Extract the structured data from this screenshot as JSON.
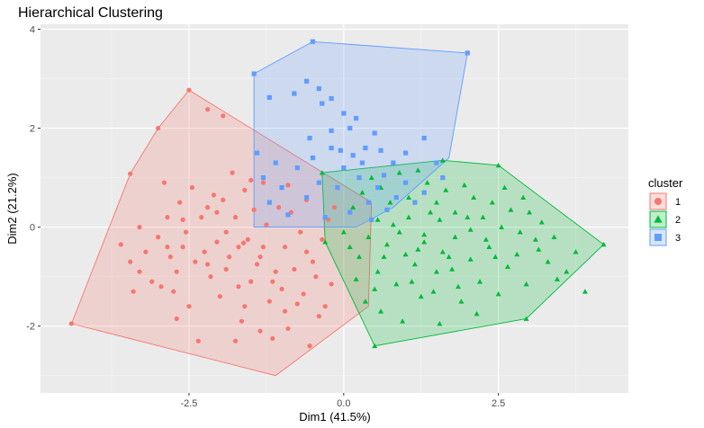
{
  "chart_data": {
    "type": "scatter",
    "title": "Hierarchical Clustering",
    "xlabel": "Dim1 (41.5%)",
    "ylabel": "Dim2 (21.2%)",
    "xlim": [
      -4.9,
      4.6
    ],
    "ylim": [
      -3.35,
      4.1
    ],
    "xticks": [
      -2.5,
      0.0,
      2.5
    ],
    "xtick_labels": [
      "-2.5",
      "0.0",
      "2.5"
    ],
    "yticks": [
      -2,
      0,
      2,
      4
    ],
    "ytick_labels": [
      "-2",
      "0",
      "2",
      "4"
    ],
    "grid": true,
    "legend": {
      "title": "cluster",
      "placement": "right"
    },
    "series": [
      {
        "name": "1",
        "marker": "circle",
        "color": "#F8766D",
        "hull": [
          [
            -4.4,
            -1.95
          ],
          [
            -3.45,
            1.08
          ],
          [
            -3.0,
            2.0
          ],
          [
            -2.5,
            2.77
          ],
          [
            -0.4,
            1.15
          ],
          [
            0.45,
            0.5
          ],
          [
            0.4,
            -1.6
          ],
          [
            -1.1,
            -3.0
          ]
        ],
        "points": [
          [
            -4.4,
            -1.95
          ],
          [
            -3.45,
            1.08
          ],
          [
            -3.0,
            2.0
          ],
          [
            -2.5,
            2.77
          ],
          [
            -2.2,
            2.38
          ],
          [
            -1.95,
            2.25
          ],
          [
            -3.6,
            -0.35
          ],
          [
            -3.45,
            -0.7
          ],
          [
            -3.4,
            -1.3
          ],
          [
            -3.3,
            -0.9
          ],
          [
            -3.2,
            -0.5
          ],
          [
            -3.1,
            -1.1
          ],
          [
            -3.0,
            -0.2
          ],
          [
            -2.95,
            -1.2
          ],
          [
            -2.9,
            0.9
          ],
          [
            -2.85,
            0.2
          ],
          [
            -2.8,
            -0.6
          ],
          [
            -2.75,
            -1.3
          ],
          [
            -2.7,
            -0.9
          ],
          [
            -2.65,
            0.5
          ],
          [
            -2.6,
            -0.4
          ],
          [
            -2.55,
            -0.1
          ],
          [
            -2.5,
            -1.6
          ],
          [
            -2.45,
            0.8
          ],
          [
            -2.4,
            -0.7
          ],
          [
            -2.35,
            -2.3
          ],
          [
            -2.3,
            0.2
          ],
          [
            -2.25,
            -0.5
          ],
          [
            -2.2,
            0.4
          ],
          [
            -2.15,
            -1.0
          ],
          [
            -2.1,
            0.65
          ],
          [
            -2.05,
            -0.3
          ],
          [
            -2.0,
            -1.4
          ],
          [
            -1.95,
            0.55
          ],
          [
            -1.9,
            -0.1
          ],
          [
            -1.85,
            -0.6
          ],
          [
            -1.8,
            1.1
          ],
          [
            -1.75,
            0.2
          ],
          [
            -1.7,
            -0.4
          ],
          [
            -1.65,
            -1.9
          ],
          [
            -1.6,
            0.75
          ],
          [
            -1.55,
            -0.25
          ],
          [
            -1.5,
            -1.1
          ],
          [
            -1.45,
            0.35
          ],
          [
            -1.4,
            -0.75
          ],
          [
            -1.35,
            -2.1
          ],
          [
            -1.3,
            -0.4
          ],
          [
            -1.25,
            0.05
          ],
          [
            -1.2,
            -1.5
          ],
          [
            -1.15,
            -2.25
          ],
          [
            -1.1,
            -0.9
          ],
          [
            -1.05,
            0.4
          ],
          [
            -1.0,
            -1.25
          ],
          [
            -0.95,
            -0.4
          ],
          [
            -0.9,
            -2.05
          ],
          [
            -0.85,
            0.3
          ],
          [
            -0.8,
            -0.85
          ],
          [
            -0.75,
            -1.55
          ],
          [
            -0.7,
            -0.1
          ],
          [
            -0.65,
            -1.35
          ],
          [
            -0.6,
            0.55
          ],
          [
            -0.55,
            -2.4
          ],
          [
            -0.5,
            -0.7
          ],
          [
            -0.45,
            -1.0
          ],
          [
            -0.4,
            -1.8
          ],
          [
            -0.35,
            -0.25
          ],
          [
            -0.3,
            -1.6
          ],
          [
            -0.25,
            0.15
          ],
          [
            -0.2,
            -1.15
          ],
          [
            -0.15,
            0.4
          ],
          [
            -2.7,
            -1.85
          ],
          [
            -1.6,
            -1.6
          ],
          [
            -1.9,
            -0.85
          ],
          [
            -2.2,
            -0.75
          ],
          [
            -0.6,
            -0.5
          ],
          [
            -1.75,
            -2.3
          ],
          [
            -2.6,
            0.15
          ],
          [
            -1.3,
            0.9
          ],
          [
            -1.15,
            -1.1
          ],
          [
            -1.5,
            0.95
          ],
          [
            -0.9,
            0.85
          ],
          [
            -3.3,
            0.0
          ],
          [
            -2.05,
            0.3
          ],
          [
            -1.7,
            -1.2
          ],
          [
            -1.35,
            -0.6
          ],
          [
            -0.95,
            -1.7
          ],
          [
            -2.85,
            -0.4
          ],
          [
            -1.62,
            -0.32
          ]
        ]
      },
      {
        "name": "2",
        "marker": "triangle",
        "color": "#00BA38",
        "hull": [
          [
            -0.35,
            1.1
          ],
          [
            1.6,
            1.35
          ],
          [
            2.5,
            1.25
          ],
          [
            4.2,
            -0.35
          ],
          [
            2.95,
            -1.85
          ],
          [
            0.5,
            -2.4
          ],
          [
            -0.3,
            -0.3
          ]
        ],
        "points": [
          [
            -0.35,
            1.1
          ],
          [
            1.6,
            1.35
          ],
          [
            2.5,
            1.25
          ],
          [
            4.2,
            -0.35
          ],
          [
            2.95,
            -1.85
          ],
          [
            0.5,
            -2.4
          ],
          [
            -0.3,
            -0.3
          ],
          [
            0.3,
            0.7
          ],
          [
            0.45,
            1.0
          ],
          [
            0.6,
            0.8
          ],
          [
            0.75,
            0.5
          ],
          [
            0.9,
            1.1
          ],
          [
            1.05,
            0.6
          ],
          [
            1.2,
            1.15
          ],
          [
            1.35,
            0.9
          ],
          [
            1.5,
            0.5
          ],
          [
            1.65,
            0.75
          ],
          [
            1.8,
            0.3
          ],
          [
            1.95,
            0.85
          ],
          [
            2.1,
            0.6
          ],
          [
            2.25,
            0.2
          ],
          [
            2.4,
            0.5
          ],
          [
            2.55,
            0.0
          ],
          [
            2.7,
            0.35
          ],
          [
            2.85,
            -0.1
          ],
          [
            3.0,
            0.3
          ],
          [
            3.15,
            -0.45
          ],
          [
            3.3,
            -0.7
          ],
          [
            3.45,
            -1.05
          ],
          [
            3.6,
            -0.9
          ],
          [
            3.75,
            -0.5
          ],
          [
            3.9,
            -1.3
          ],
          [
            0.1,
            -0.4
          ],
          [
            0.25,
            -0.6
          ],
          [
            0.4,
            -0.2
          ],
          [
            0.55,
            -0.9
          ],
          [
            0.7,
            -0.35
          ],
          [
            0.85,
            -1.15
          ],
          [
            1.0,
            -0.55
          ],
          [
            1.15,
            -0.75
          ],
          [
            1.3,
            -0.15
          ],
          [
            1.45,
            -1.3
          ],
          [
            1.6,
            -0.5
          ],
          [
            1.75,
            -0.85
          ],
          [
            1.9,
            -1.5
          ],
          [
            2.05,
            -0.65
          ],
          [
            2.2,
            -1.1
          ],
          [
            2.35,
            -0.4
          ],
          [
            2.5,
            -1.35
          ],
          [
            2.65,
            -0.8
          ],
          [
            2.8,
            -0.55
          ],
          [
            2.95,
            -1.15
          ],
          [
            3.1,
            -0.25
          ],
          [
            0.2,
            -1.05
          ],
          [
            0.35,
            -1.5
          ],
          [
            0.6,
            -1.7
          ],
          [
            0.95,
            -1.9
          ],
          [
            1.25,
            -1.4
          ],
          [
            1.55,
            -1.95
          ],
          [
            1.85,
            -1.2
          ],
          [
            2.15,
            -1.75
          ],
          [
            0.55,
            0.15
          ],
          [
            0.8,
            0.05
          ],
          [
            1.05,
            0.2
          ],
          [
            1.3,
            -0.3
          ],
          [
            1.55,
            0.15
          ],
          [
            1.8,
            -0.2
          ],
          [
            2.05,
            -0.05
          ],
          [
            2.3,
            -0.25
          ],
          [
            2.6,
            0.8
          ],
          [
            2.9,
            0.6
          ],
          [
            3.2,
            0.1
          ],
          [
            3.4,
            -0.2
          ],
          [
            0.15,
            0.4
          ],
          [
            0.0,
            -0.1
          ],
          [
            0.65,
            -0.6
          ],
          [
            1.1,
            -1.1
          ],
          [
            1.4,
            0.3
          ],
          [
            1.7,
            -0.6
          ],
          [
            2.0,
            0.2
          ],
          [
            2.45,
            -0.6
          ],
          [
            0.5,
            -1.25
          ],
          [
            0.9,
            -0.1
          ],
          [
            1.2,
            -0.45
          ],
          [
            1.5,
            -0.9
          ]
        ]
      },
      {
        "name": "3",
        "marker": "square",
        "color": "#619CFF",
        "hull": [
          [
            -1.45,
            3.1
          ],
          [
            -0.5,
            3.75
          ],
          [
            2.0,
            3.52
          ],
          [
            1.7,
            1.4
          ],
          [
            0.8,
            0.4
          ],
          [
            0.2,
            0.0
          ],
          [
            -1.45,
            0.0
          ]
        ],
        "points": [
          [
            -1.45,
            3.1
          ],
          [
            -0.5,
            3.75
          ],
          [
            2.0,
            3.52
          ],
          [
            -1.2,
            2.62
          ],
          [
            -0.8,
            2.7
          ],
          [
            -0.6,
            2.95
          ],
          [
            -0.4,
            2.8
          ],
          [
            -0.35,
            2.5
          ],
          [
            -0.2,
            2.6
          ],
          [
            0.0,
            2.3
          ],
          [
            0.1,
            2.0
          ],
          [
            0.2,
            2.2
          ],
          [
            0.35,
            1.6
          ],
          [
            0.5,
            1.9
          ],
          [
            0.6,
            1.55
          ],
          [
            0.8,
            1.3
          ],
          [
            1.0,
            1.5
          ],
          [
            1.3,
            1.8
          ],
          [
            1.5,
            1.3
          ],
          [
            1.6,
            1.0
          ],
          [
            -1.4,
            1.5
          ],
          [
            -1.3,
            1.0
          ],
          [
            -1.2,
            0.5
          ],
          [
            -1.1,
            1.3
          ],
          [
            -1.0,
            0.8
          ],
          [
            -0.9,
            0.25
          ],
          [
            -0.75,
            1.2
          ],
          [
            -0.6,
            0.6
          ],
          [
            -0.5,
            1.4
          ],
          [
            -0.4,
            0.9
          ],
          [
            -0.3,
            0.2
          ],
          [
            -0.2,
            1.6
          ],
          [
            -0.1,
            0.8
          ],
          [
            0.0,
            1.2
          ],
          [
            0.1,
            0.3
          ],
          [
            0.25,
            1.0
          ],
          [
            0.4,
            0.5
          ],
          [
            0.55,
            0.8
          ],
          [
            0.7,
            0.35
          ],
          [
            0.85,
            0.6
          ],
          [
            1.0,
            0.9
          ],
          [
            1.15,
            0.5
          ],
          [
            1.3,
            0.7
          ],
          [
            0.15,
            1.45
          ],
          [
            -0.2,
            1.95
          ],
          [
            0.3,
            1.3
          ],
          [
            -0.05,
            1.55
          ],
          [
            -0.55,
            1.8
          ],
          [
            0.65,
            1.05
          ],
          [
            0.45,
            0.15
          ]
        ]
      }
    ]
  }
}
